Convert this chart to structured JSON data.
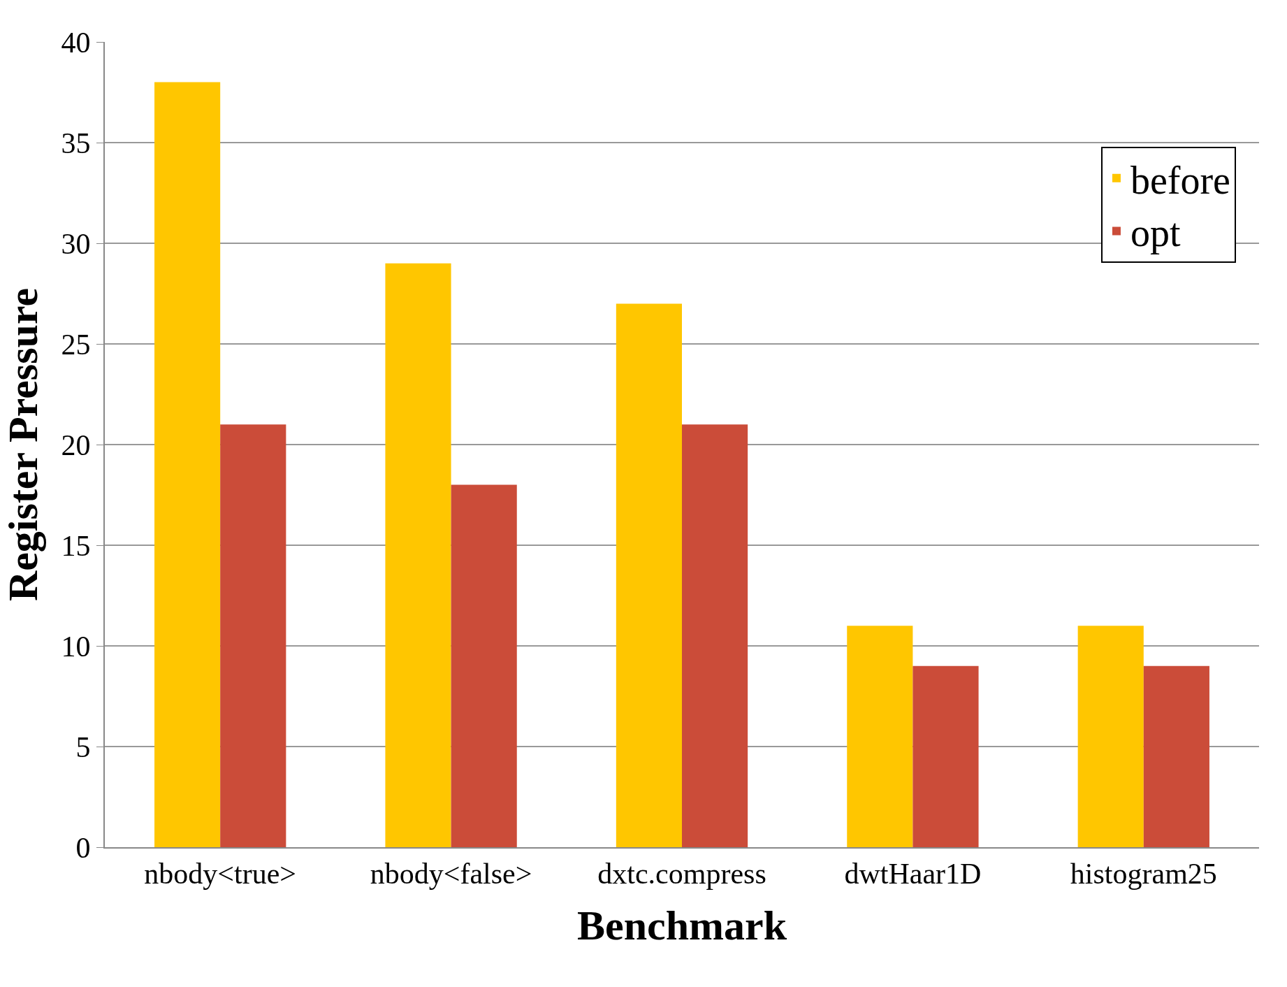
{
  "chart_data": {
    "type": "bar",
    "xlabel": "Benchmark",
    "ylabel": "Register Pressure",
    "categories": [
      "nbody<true>",
      "nbody<false>",
      "dxtc.compress",
      "dwtHaar1D",
      "histogram25"
    ],
    "series": [
      {
        "name": "before",
        "color": "#ffc600",
        "values": [
          38,
          29,
          27,
          11,
          11
        ]
      },
      {
        "name": "opt",
        "color": "#cb4c39",
        "values": [
          21,
          18,
          21,
          9,
          9
        ]
      }
    ],
    "ylim": [
      0,
      40
    ],
    "yticks": [
      0,
      5,
      10,
      15,
      20,
      25,
      30,
      35,
      40
    ],
    "grid": "y",
    "legend": "top right"
  }
}
